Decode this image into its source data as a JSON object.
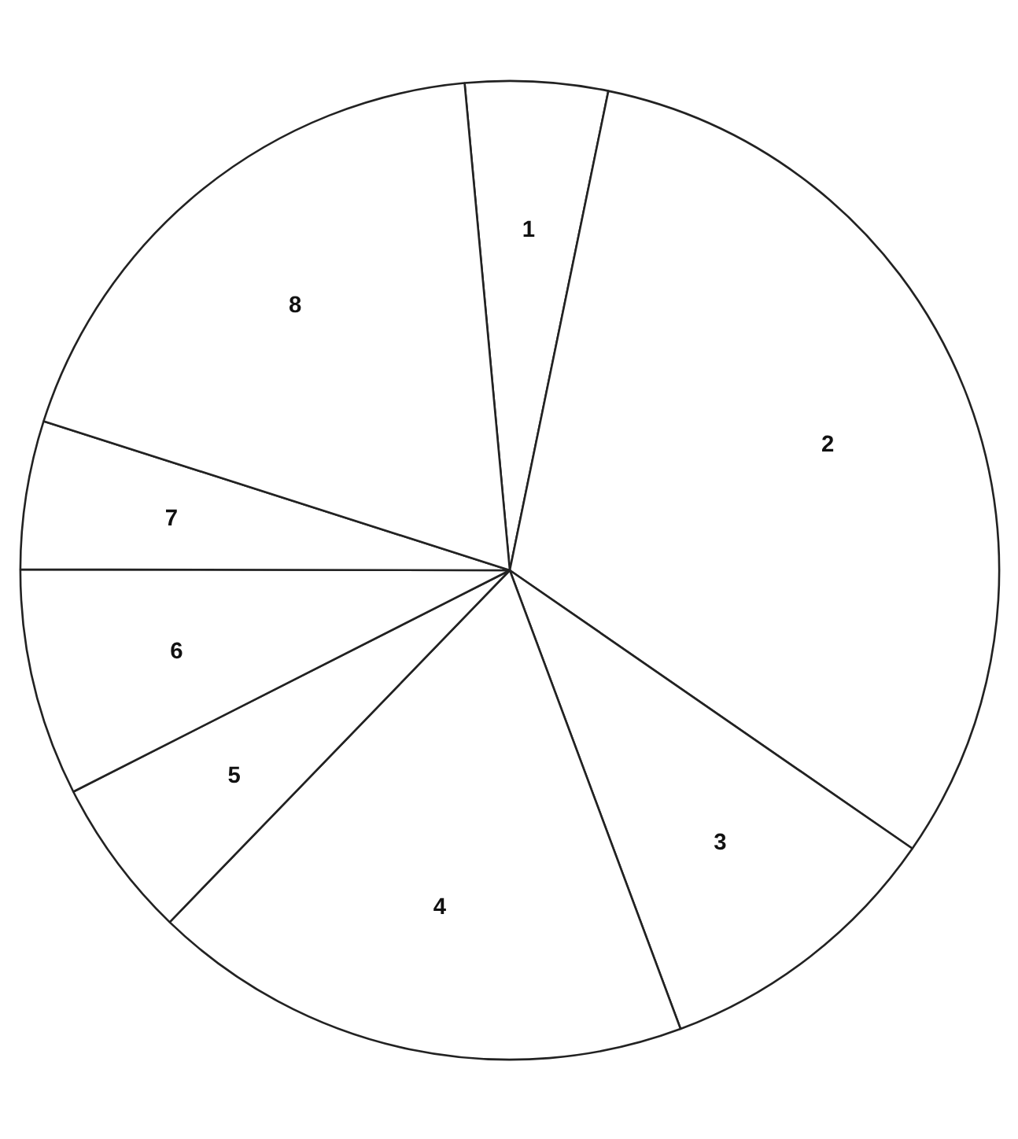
{
  "chart_data": {
    "type": "pie",
    "categories": [
      "1",
      "2",
      "3",
      "4",
      "5",
      "6",
      "7",
      "8"
    ],
    "values": [
      4.7,
      31.4,
      9.7,
      17.9,
      5.3,
      7.5,
      4.9,
      18.6
    ],
    "colors": [
      "#ffffff",
      "#ffffff",
      "#ffffff",
      "#ffffff",
      "#ffffff",
      "#ffffff",
      "#ffffff",
      "#ffffff"
    ]
  }
}
